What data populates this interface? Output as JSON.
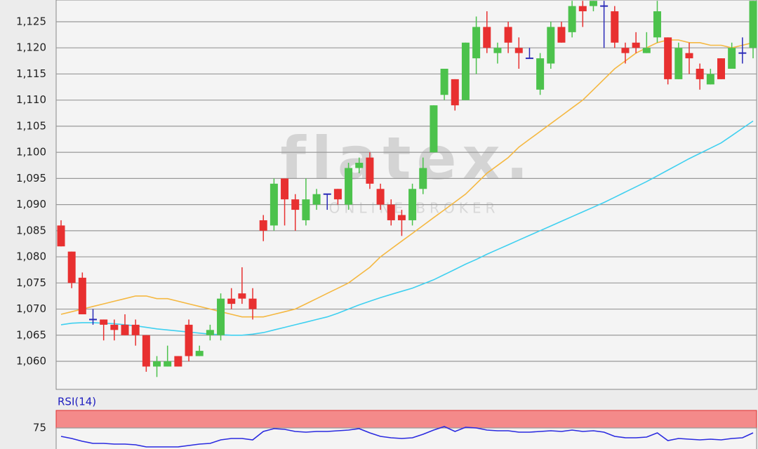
{
  "watermark": {
    "logo": "flatex.",
    "tagline": "ONLINE BROKER"
  },
  "chart_data": [
    {
      "type": "candlestick",
      "open": [
        1086,
        1081,
        1076,
        1068,
        1068,
        1067,
        1067,
        1067,
        1065,
        1059,
        1059,
        1061,
        1067,
        1061,
        1065,
        1065,
        1072,
        1073,
        1072,
        1087,
        1086,
        1095,
        1091,
        1087,
        1090,
        1092,
        1093,
        1090,
        1097,
        1099,
        1093,
        1090,
        1088,
        1087,
        1093,
        1100,
        1111,
        1114,
        1110,
        1118,
        1124,
        1119,
        1124,
        1120,
        1118,
        1112,
        1117,
        1124,
        1123,
        1128,
        1128,
        1128,
        1127,
        1120,
        1121,
        1119,
        1122,
        1122,
        1114,
        1119,
        1116,
        1113,
        1118,
        1116,
        1119,
        1120
      ],
      "high": [
        1087,
        1081,
        1077,
        1070,
        1068,
        1068,
        1069,
        1068,
        1065,
        1061,
        1063,
        1061,
        1068,
        1063,
        1067,
        1073,
        1074,
        1078,
        1074,
        1088,
        1095,
        1095,
        1092,
        1095,
        1093,
        1092,
        1093,
        1098,
        1099,
        1100,
        1094,
        1091,
        1089,
        1094,
        1099,
        1109,
        1116,
        1114,
        1121,
        1126,
        1127,
        1121,
        1125,
        1122,
        1120,
        1119,
        1125,
        1125,
        1129,
        1129,
        1129,
        1129,
        1128,
        1121,
        1123,
        1123,
        1129,
        1122,
        1121,
        1121,
        1117,
        1116,
        1118,
        1121,
        1122,
        1129
      ],
      "low": [
        1082,
        1074,
        1069,
        1067,
        1064,
        1064,
        1065,
        1063,
        1058,
        1057,
        1059,
        1059,
        1060,
        1061,
        1064,
        1064,
        1070,
        1071,
        1068,
        1083,
        1085,
        1086,
        1085,
        1086,
        1089,
        1089,
        1090,
        1089,
        1096,
        1093,
        1089,
        1086,
        1084,
        1086,
        1092,
        1100,
        1110,
        1108,
        1110,
        1115,
        1119,
        1117,
        1119,
        1116,
        1118,
        1111,
        1116,
        1121,
        1122,
        1124,
        1127,
        1120,
        1120,
        1117,
        1119,
        1119,
        1121,
        1113,
        1114,
        1115,
        1112,
        1113,
        1114,
        1116,
        1117,
        1118
      ],
      "close": [
        1082,
        1075,
        1069,
        1068,
        1067,
        1066,
        1065,
        1065,
        1059,
        1060,
        1060,
        1059,
        1061,
        1062,
        1066,
        1072,
        1071,
        1072,
        1070,
        1085,
        1094,
        1091,
        1089,
        1091,
        1092,
        1092,
        1091,
        1097,
        1098,
        1094,
        1090,
        1087,
        1087,
        1093,
        1097,
        1109,
        1116,
        1109,
        1121,
        1124,
        1120,
        1120,
        1121,
        1119,
        1118,
        1118,
        1124,
        1121,
        1128,
        1127,
        1129,
        1128,
        1121,
        1119,
        1120,
        1120,
        1127,
        1114,
        1120,
        1118,
        1114,
        1115,
        1114,
        1120,
        1119,
        1129
      ],
      "up_color": "#4cc24c",
      "down_color": "#e83030",
      "doji_color": "#2a2ab8",
      "series": [
        {
          "color": "#f5b841",
          "values": [
            1069,
            1069.5,
            1070,
            1070.5,
            1071,
            1071.5,
            1072,
            1072.5,
            1072.5,
            1072,
            1072,
            1071.5,
            1071,
            1070.5,
            1070,
            1069.5,
            1069,
            1068.5,
            1068.5,
            1068.5,
            1069,
            1069.5,
            1070,
            1071,
            1072,
            1073,
            1074,
            1075,
            1076.5,
            1078,
            1080,
            1081.5,
            1083,
            1084.5,
            1086,
            1087.5,
            1089,
            1090.5,
            1092,
            1094,
            1096,
            1097.5,
            1099,
            1101,
            1102.5,
            1104,
            1105.5,
            1107,
            1108.5,
            1110,
            1112,
            1114,
            1116,
            1117.5,
            1119,
            1120,
            1121,
            1121.5,
            1121.5,
            1121,
            1121,
            1120.5,
            1120.5,
            1120,
            1120.5,
            1121
          ]
        },
        {
          "color": "#3fd0f0",
          "values": [
            1067,
            1067.3,
            1067.4,
            1067.4,
            1067.3,
            1067.2,
            1067,
            1066.8,
            1066.5,
            1066.2,
            1066,
            1065.8,
            1065.6,
            1065.4,
            1065.2,
            1065.1,
            1065,
            1065,
            1065.2,
            1065.5,
            1066,
            1066.5,
            1067,
            1067.5,
            1068,
            1068.5,
            1069.2,
            1070,
            1070.8,
            1071.5,
            1072.2,
            1072.8,
            1073.4,
            1074,
            1074.8,
            1075.6,
            1076.6,
            1077.6,
            1078.6,
            1079.5,
            1080.5,
            1081.4,
            1082.3,
            1083.2,
            1084.1,
            1085,
            1085.9,
            1086.8,
            1087.7,
            1088.6,
            1089.5,
            1090.4,
            1091.4,
            1092.4,
            1093.4,
            1094.4,
            1095.5,
            1096.6,
            1097.7,
            1098.8,
            1099.8,
            1100.8,
            1101.8,
            1103.2,
            1104.6,
            1106
          ]
        }
      ],
      "ylim": [
        1054.63,
        1129.16
      ],
      "yticks": [
        {
          "value": 1060,
          "label": "1,060"
        },
        {
          "value": 1065,
          "label": "1,065"
        },
        {
          "value": 1070,
          "label": "1,070"
        },
        {
          "value": 1075,
          "label": "1,075"
        },
        {
          "value": 1080,
          "label": "1,080"
        },
        {
          "value": 1085,
          "label": "1,085"
        },
        {
          "value": 1090,
          "label": "1,090"
        },
        {
          "value": 1095,
          "label": "1,095"
        },
        {
          "value": 1100,
          "label": "1,100"
        },
        {
          "value": 1105,
          "label": "1,105"
        },
        {
          "value": 1110,
          "label": "1,110"
        },
        {
          "value": 1115,
          "label": "1,115"
        },
        {
          "value": 1120,
          "label": "1,120"
        },
        {
          "value": 1125,
          "label": "1,125"
        }
      ],
      "grid": true
    },
    {
      "type": "line",
      "title": "RSI(14)",
      "color": "#2a2ae0",
      "values": [
        63,
        60,
        56,
        53,
        53,
        52,
        52,
        51,
        48,
        48,
        48,
        48,
        50,
        52,
        53,
        58,
        60,
        60,
        58,
        70,
        74,
        73,
        70,
        69,
        70,
        70,
        71,
        72,
        74,
        68,
        63,
        61,
        60,
        61,
        66,
        72,
        77,
        70,
        76,
        75,
        72,
        71,
        71,
        69,
        69,
        70,
        71,
        70,
        72,
        70,
        71,
        69,
        63,
        61,
        61,
        62,
        68,
        57,
        60,
        59,
        58,
        59,
        58,
        60,
        61,
        68
      ],
      "ylim": [
        45,
        100
      ],
      "yticks": [
        75
      ],
      "band": [
        75,
        100
      ],
      "band_color": "#f48a8a",
      "grid": true
    }
  ]
}
